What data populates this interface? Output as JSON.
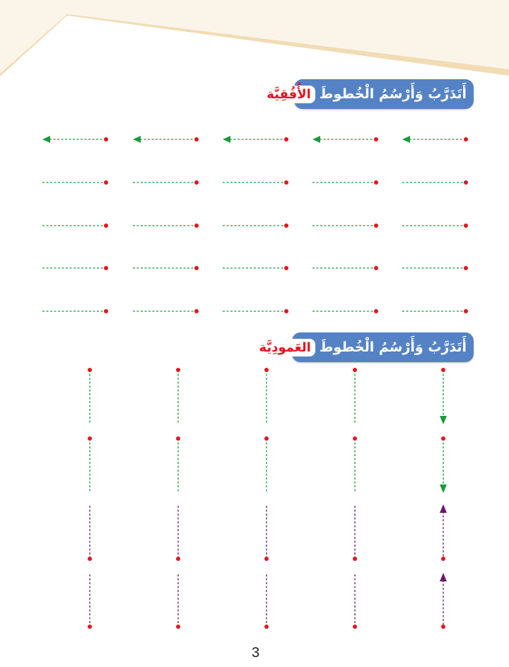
{
  "section_horizontal": {
    "title": "أَتَدَرَّبُ وَأَرْسُمُ الْخُطوطَ",
    "highlight": "الأُفُقِيَّة",
    "rows": 5,
    "columns": 5,
    "arrow_direction": "left"
  },
  "section_vertical": {
    "title": "أَتَدَرَّبُ وَأَرْسُمُ الْخُطوطَ",
    "highlight": "العَمودِيَّة",
    "columns": 5,
    "segments": [
      {
        "color": "green",
        "direction": "down"
      },
      {
        "color": "green",
        "direction": "down"
      },
      {
        "color": "purple",
        "direction": "up"
      },
      {
        "color": "purple",
        "direction": "up"
      }
    ]
  },
  "page_number": "3",
  "colors": {
    "banner": "#5482c4",
    "highlight_text": "#e3141b",
    "dot": "#e8141b",
    "green": "#1a9a3c",
    "purple": "#6a1a6e",
    "corner_light": "#fbf4e9",
    "corner_edge": "#f1dcb4"
  }
}
